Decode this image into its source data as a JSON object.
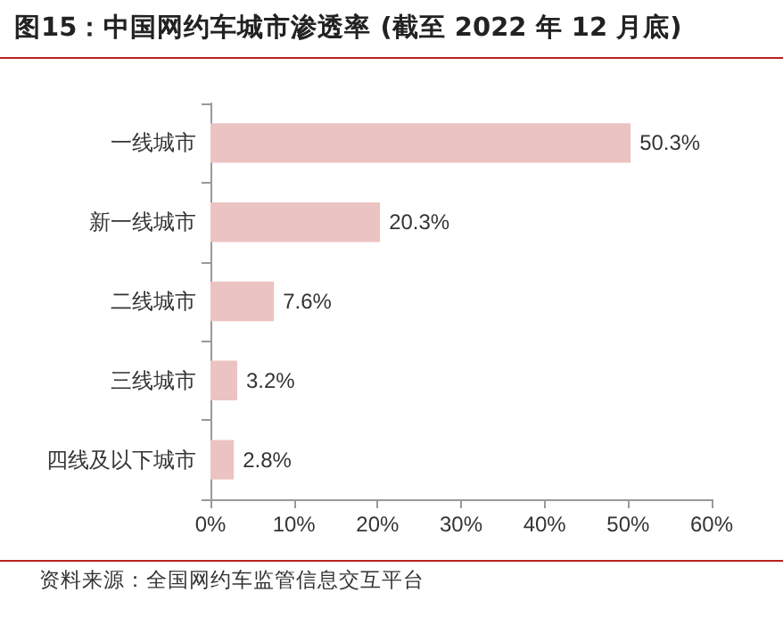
{
  "chart_data": {
    "type": "bar",
    "orientation": "horizontal",
    "title": "图15：中国网约车城市渗透率 (截至 2022 年 12 月底)",
    "categories": [
      "一线城市",
      "新一线城市",
      "二线城市",
      "三线城市",
      "四线及以下城市"
    ],
    "values": [
      50.3,
      20.3,
      7.6,
      3.2,
      2.8
    ],
    "value_labels": [
      "50.3%",
      "20.3%",
      "7.6%",
      "3.2%",
      "2.8%"
    ],
    "color": "#ecc3c3",
    "xlim": [
      0,
      60
    ],
    "xticks": [
      {
        "value": 0,
        "label": "0%"
      },
      {
        "value": 10,
        "label": "10%"
      },
      {
        "value": 20,
        "label": "20%"
      },
      {
        "value": 30,
        "label": "30%"
      },
      {
        "value": 40,
        "label": "40%"
      },
      {
        "value": 50,
        "label": "50%"
      },
      {
        "value": 60,
        "label": "60%"
      }
    ],
    "grid": false,
    "annotations": [
      "资料来源：全国网约车监管信息交互平台"
    ]
  }
}
